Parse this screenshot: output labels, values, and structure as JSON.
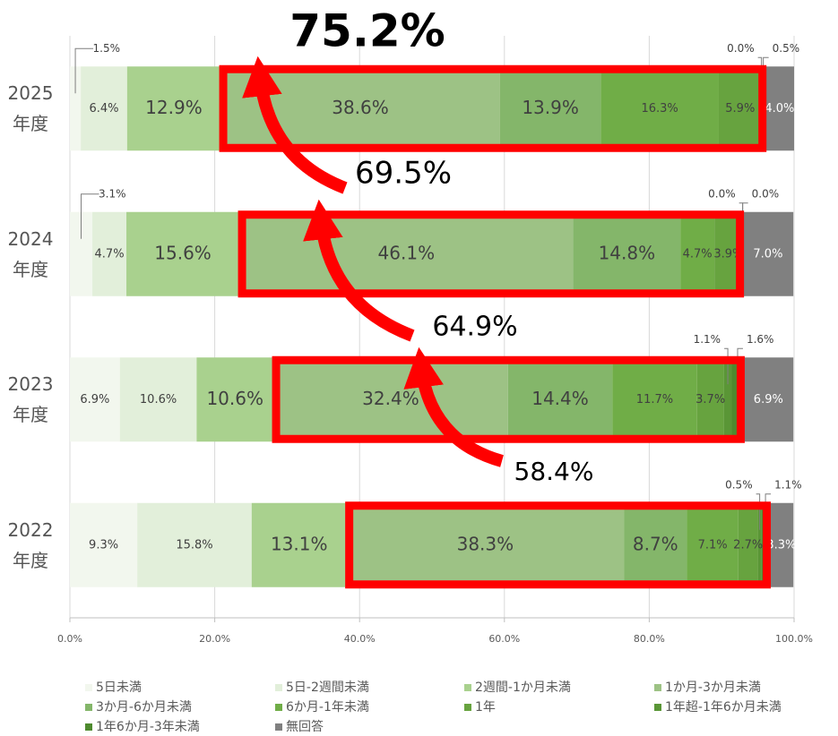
{
  "chart_data": {
    "type": "stacked-bar-horizontal",
    "categories": [
      "2025年度",
      "2024年度",
      "2023年度",
      "2022年度"
    ],
    "xlim": [
      0,
      100
    ],
    "xticks": [
      {
        "value": 0,
        "label": "0.0%"
      },
      {
        "value": 20,
        "label": "20.0%"
      },
      {
        "value": 40,
        "label": "40.0%"
      },
      {
        "value": 60,
        "label": "60.0%"
      },
      {
        "value": 80,
        "label": "80.0%"
      },
      {
        "value": 100,
        "label": "100.0%"
      }
    ],
    "grid": true,
    "legend": "bottom",
    "series": [
      {
        "name": "5日未満",
        "color": "#f2f7ee",
        "values": [
          1.5,
          3.1,
          6.9,
          9.3
        ],
        "value_labels": [
          "1.5%",
          "3.1%",
          "6.9%",
          "9.3%"
        ]
      },
      {
        "name": "5日-2週間未満",
        "color": "#e2efda",
        "values": [
          6.4,
          4.7,
          10.6,
          15.8
        ],
        "value_labels": [
          "6.4%",
          "4.7%",
          "10.6%",
          "15.8%"
        ]
      },
      {
        "name": "2週間-1か月未満",
        "color": "#a9d18e",
        "values": [
          12.9,
          15.6,
          10.6,
          13.1
        ],
        "value_labels": [
          "12.9%",
          "15.6%",
          "10.6%",
          "13.1%"
        ]
      },
      {
        "name": "1か月-3か月未満",
        "color": "#9dc285",
        "values": [
          38.6,
          46.1,
          32.4,
          38.3
        ],
        "value_labels": [
          "38.6%",
          "46.1%",
          "32.4%",
          "38.3%"
        ]
      },
      {
        "name": "3か月-6か月未満",
        "color": "#84b66a",
        "values": [
          13.9,
          14.8,
          14.4,
          8.7
        ],
        "value_labels": [
          "13.9%",
          "14.8%",
          "14.4%",
          "8.7%"
        ]
      },
      {
        "name": "6か月-1年未満",
        "color": "#70ad47",
        "values": [
          16.3,
          4.7,
          11.7,
          7.1
        ],
        "value_labels": [
          "16.3%",
          "4.7%",
          "11.7%",
          "7.1%"
        ]
      },
      {
        "name": "1年",
        "color": "#67a33f",
        "values": [
          5.9,
          3.9,
          3.7,
          2.7
        ],
        "value_labels": [
          "5.9%",
          "3.9%",
          "3.7%",
          "2.7%"
        ]
      },
      {
        "name": "1年超-1年6か月未満",
        "color": "#5a9636",
        "values": [
          0.0,
          0.0,
          1.1,
          0.5
        ],
        "value_labels": [
          "0.0%",
          "0.0%",
          "1.1%",
          "0.5%"
        ]
      },
      {
        "name": "1年6か月-3年未満",
        "color": "#4e8a2e",
        "values": [
          0.5,
          0.0,
          1.6,
          1.1
        ],
        "value_labels": [
          "0.5%",
          "0.0%",
          "1.6%",
          "1.1%"
        ]
      },
      {
        "name": "無回答",
        "color": "#808080",
        "values": [
          4.0,
          7.0,
          6.9,
          3.3
        ],
        "value_labels": [
          "4.0%",
          "7.0%",
          "6.9%",
          "3.3%"
        ]
      }
    ],
    "annotations": [
      "75.2%",
      "69.5%",
      "64.9%",
      "58.4%"
    ]
  }
}
